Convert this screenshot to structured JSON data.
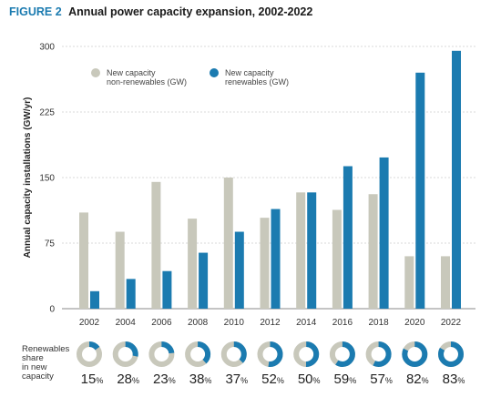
{
  "figure": {
    "label": "FIGURE 2",
    "title": "Annual power capacity expansion, 2002-2022"
  },
  "colors": {
    "non_renewables": "#c8c8bb",
    "renewables": "#1b7bb0",
    "grid": "#d9d9d9"
  },
  "chart_data": {
    "type": "bar",
    "categories": [
      "2002",
      "2004",
      "2006",
      "2008",
      "2010",
      "2012",
      "2014",
      "2016",
      "2018",
      "2020",
      "2022"
    ],
    "series": [
      {
        "name": "New capacity non-renewables (GW)",
        "values": [
          110,
          88,
          145,
          103,
          150,
          104,
          133,
          113,
          131,
          60,
          60
        ]
      },
      {
        "name": "New capacity renewables (GW)",
        "values": [
          20,
          34,
          43,
          64,
          88,
          114,
          133,
          163,
          173,
          270,
          295
        ]
      }
    ],
    "legend": [
      {
        "line1": "New capacity",
        "line2": "non-renewables (GW)"
      },
      {
        "line1": "New capacity",
        "line2": "renewables (GW)"
      }
    ],
    "ylabel": "Annual capacity installations (GW/yr)",
    "ylim": [
      0,
      300
    ],
    "yticks": [
      0,
      75,
      150,
      225,
      300
    ],
    "grid": true,
    "legend_position": "top-left",
    "renewables_share": {
      "label": "Renewables\nshare\nin new\ncapacity",
      "values": [
        15,
        28,
        23,
        38,
        37,
        52,
        50,
        59,
        57,
        82,
        83
      ],
      "unit": "%"
    }
  }
}
